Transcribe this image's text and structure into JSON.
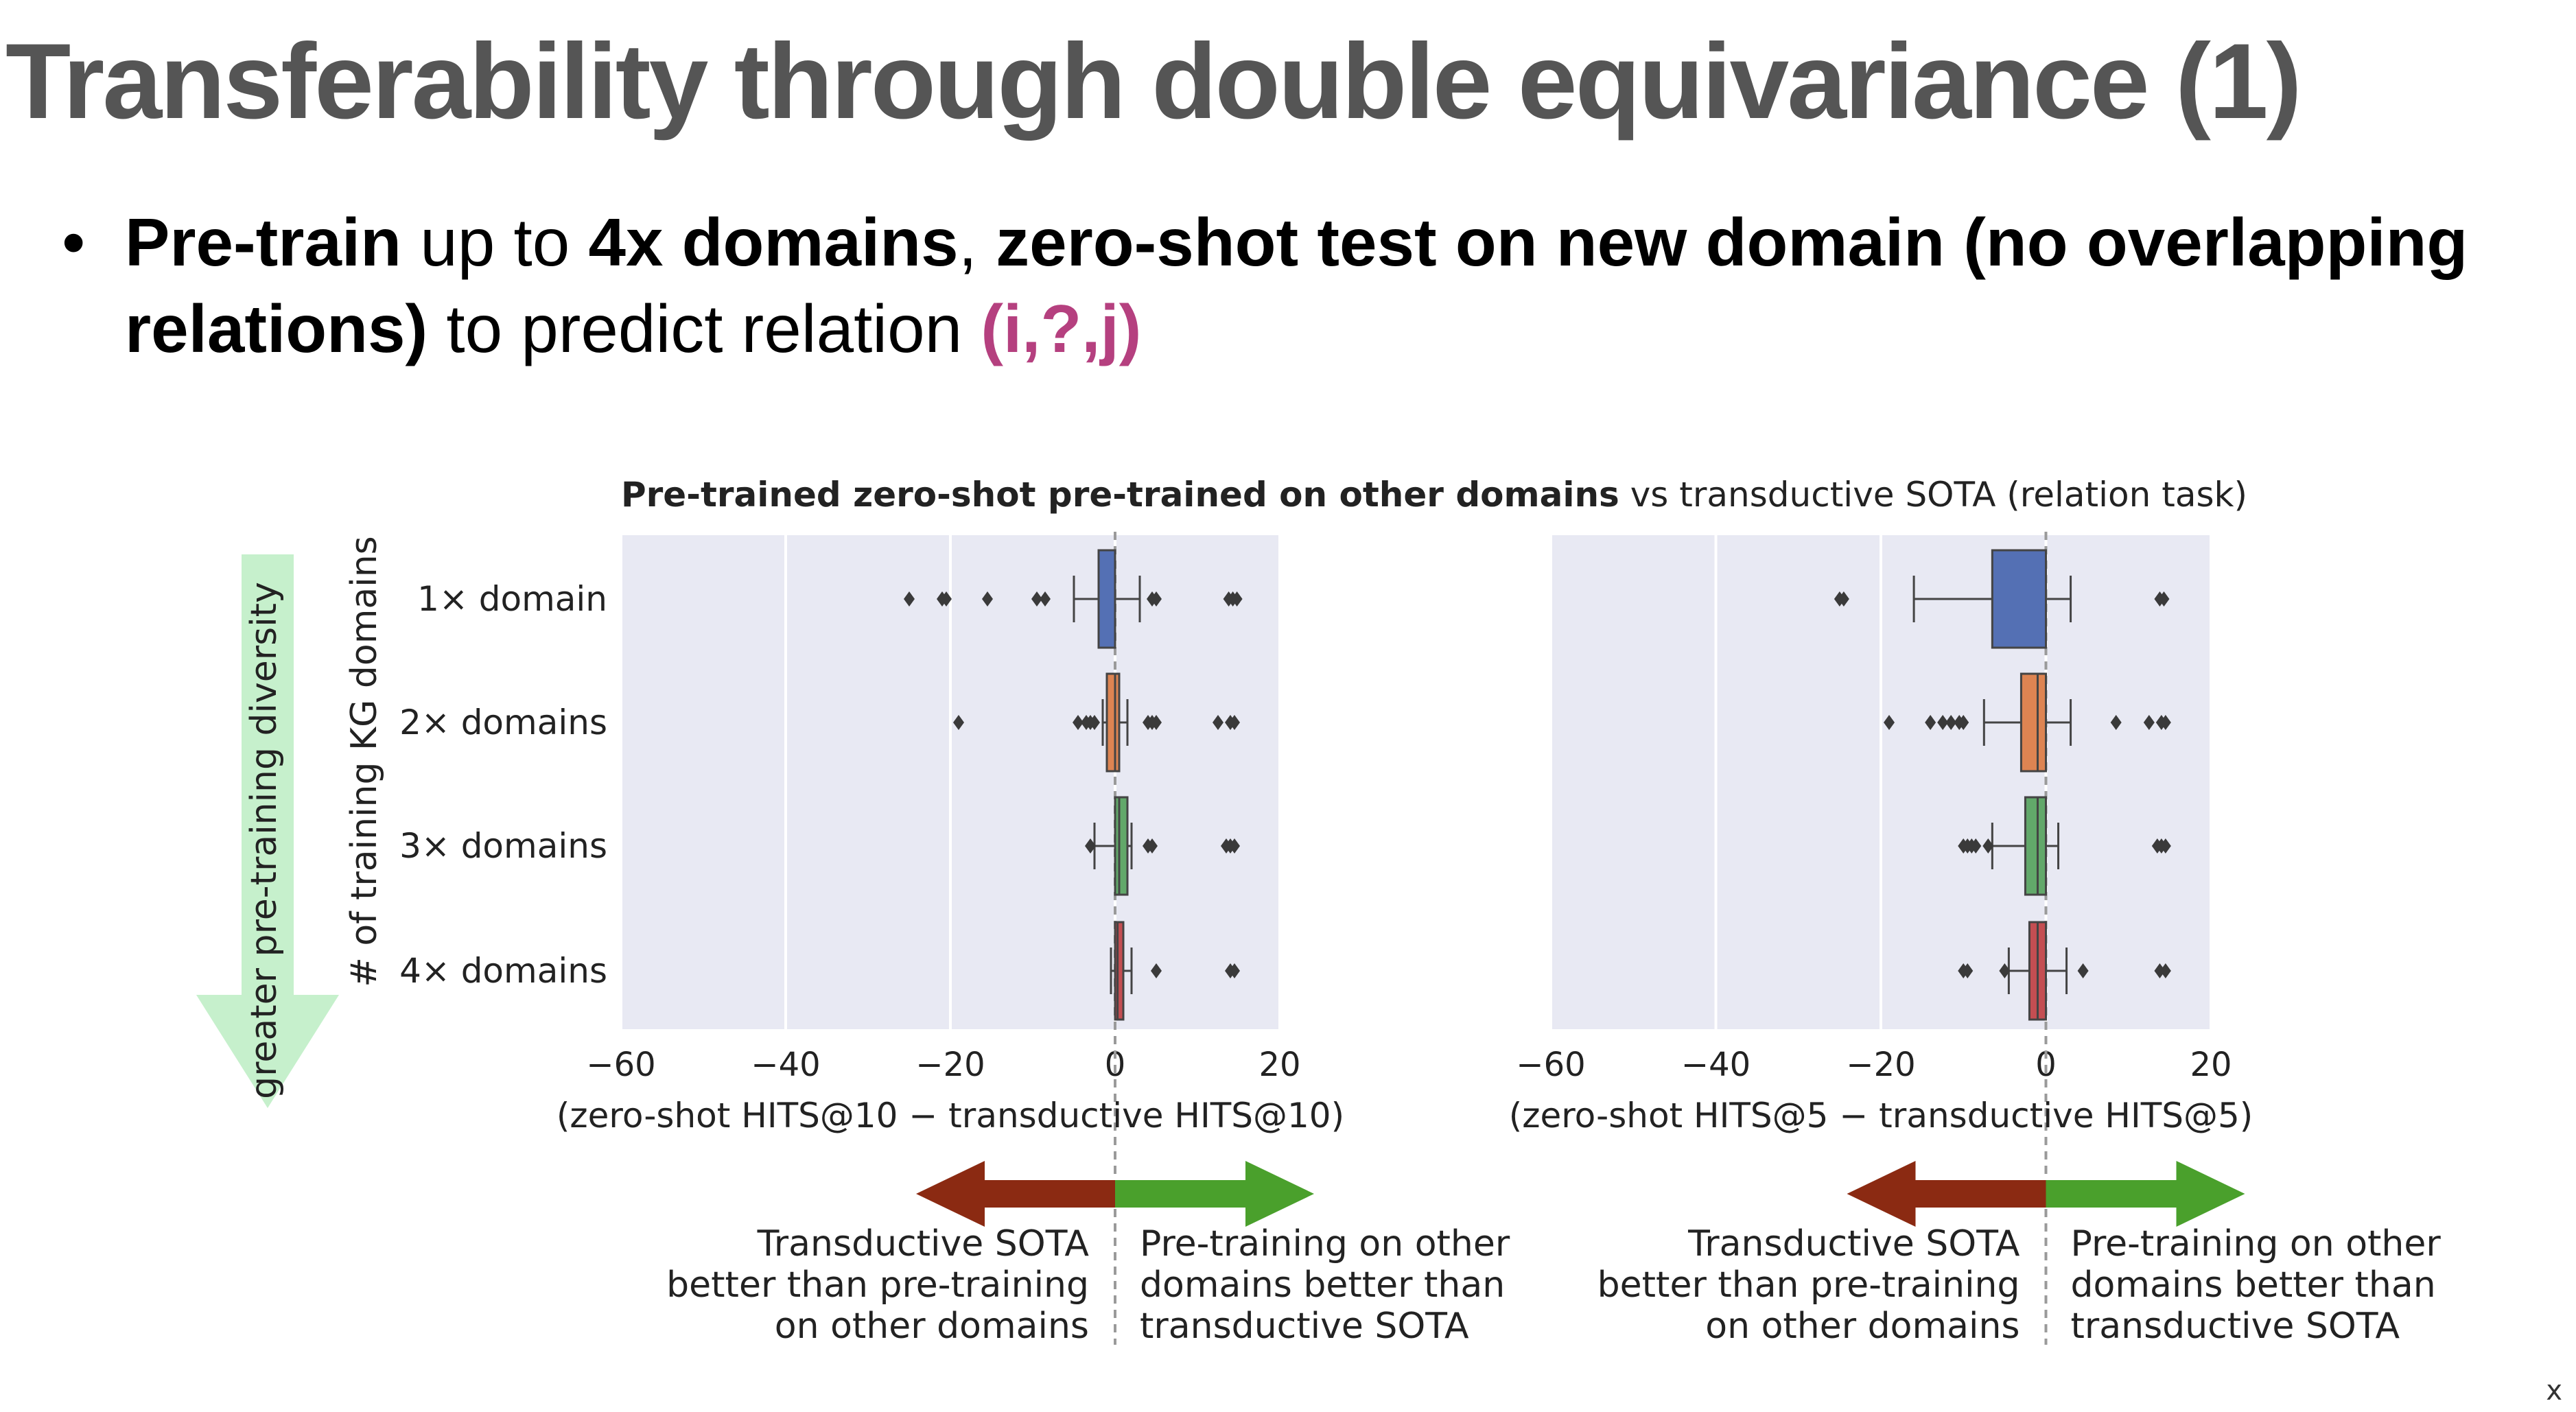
{
  "slide": {
    "title": "Transferability through double equivariance (1)",
    "bullet": {
      "bold1": "Pre-train",
      "text1": " up to ",
      "bold2": "4x domains",
      "text2": ", ",
      "bold3": "zero-shot test on new domain (no overlapping relations)",
      "text3": " to predict relation ",
      "highlight": "(i,?,j)"
    },
    "corner_mark": "x"
  },
  "diversity_arrow": {
    "label": "greater pre-training diversity",
    "color": "#c6f0cc"
  },
  "directions": {
    "left_lines": [
      "Transductive SOTA",
      "better than pre-training",
      "on other domains"
    ],
    "right_lines": [
      "Pre-training on other",
      "domains better than",
      "transductive SOTA"
    ],
    "left_color": "#8b2a12",
    "right_color": "#4aa02c"
  },
  "chart_data": {
    "type": "box",
    "suptitle_bold": "Pre-trained zero-shot pre-trained on other domains",
    "suptitle_normal": " vs transductive SOTA (relation task)",
    "ylabel": "# of training KG domains",
    "categories": [
      "1× domain",
      "2× domains",
      "3× domains",
      "4× domains"
    ],
    "colors": [
      "#5470b4",
      "#dd8452",
      "#62a86a",
      "#c44e52"
    ],
    "panel_bg": "#e8e9f3",
    "grid": true,
    "xlim": [
      -60,
      20
    ],
    "xticks": [
      -60,
      -40,
      -20,
      0,
      20
    ],
    "xtick_labels": [
      "−60",
      "−40",
      "−20",
      "0",
      "20"
    ],
    "panels": [
      {
        "xlabel": "(zero-shot HITS@10 − transductive HITS@10)",
        "boxes": [
          {
            "whislo": -5,
            "q1": -2,
            "med": 0,
            "q3": 0,
            "whishi": 3,
            "fliers": [
              -25,
              -21,
              -20.5,
              -15.5,
              -9.5,
              -8.5,
              4.5,
              5,
              13.8,
              14.3,
              14.8
            ]
          },
          {
            "whislo": -1.5,
            "q1": -1,
            "med": 0,
            "q3": 0.5,
            "whishi": 1.5,
            "fliers": [
              -19,
              -4.5,
              -3.5,
              -3,
              -2.5,
              4,
              4.5,
              5,
              12.5,
              14,
              14.5
            ]
          },
          {
            "whislo": -2.5,
            "q1": 0,
            "med": 0.5,
            "q3": 1.5,
            "whishi": 2,
            "fliers": [
              -3,
              4,
              4.5,
              13.5,
              14,
              14.5
            ]
          },
          {
            "whislo": -0.5,
            "q1": 0,
            "med": 0.3,
            "q3": 1,
            "whishi": 2,
            "fliers": [
              5,
              14,
              14.5
            ]
          }
        ]
      },
      {
        "xlabel": "(zero-shot HITS@5 − transductive HITS@5)",
        "boxes": [
          {
            "whislo": -16,
            "q1": -6.5,
            "med": 0,
            "q3": 0,
            "whishi": 3,
            "fliers": [
              -25,
              -24.5,
              13.8,
              14.3
            ]
          },
          {
            "whislo": -7.5,
            "q1": -3,
            "med": -1,
            "q3": 0,
            "whishi": 3,
            "fliers": [
              -19,
              -14,
              -12.5,
              -11.5,
              -10.5,
              -10,
              8.5,
              12.5,
              14,
              14.5
            ]
          },
          {
            "whislo": -6.5,
            "q1": -2.5,
            "med": -1,
            "q3": 0,
            "whishi": 1.5,
            "fliers": [
              -10,
              -9.5,
              -9,
              -8.5,
              -7,
              13.5,
              14,
              14.5
            ]
          },
          {
            "whislo": -4.5,
            "q1": -2,
            "med": -1,
            "q3": 0,
            "whishi": 2.5,
            "fliers": [
              -10,
              -9.5,
              -5,
              4.5,
              13.8,
              14.5
            ]
          }
        ]
      }
    ]
  }
}
